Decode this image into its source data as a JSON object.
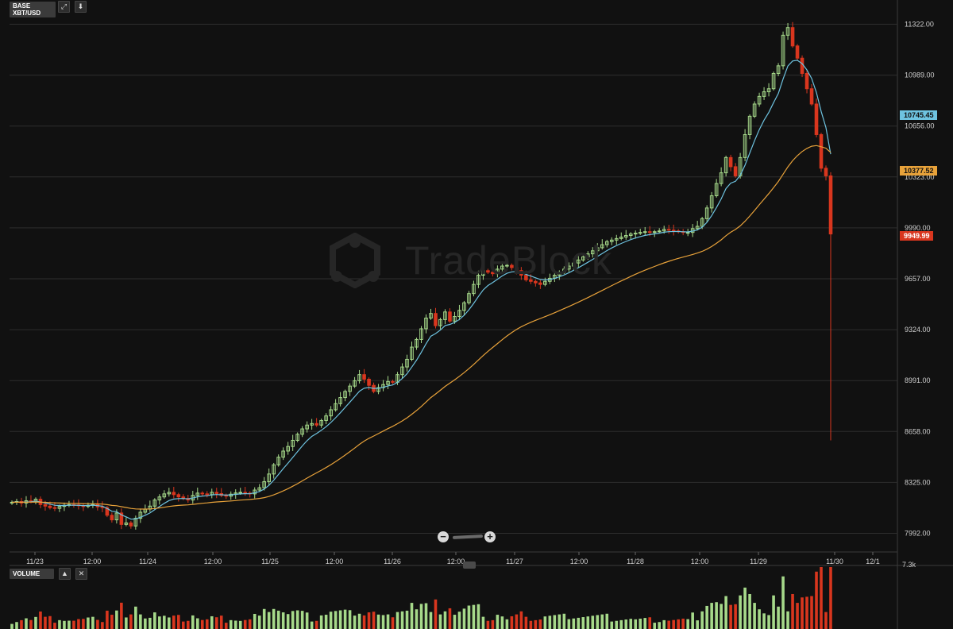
{
  "header": {
    "base_label": "BASE",
    "pair_label": "XBT/USD",
    "expand_icon": "expand-icon",
    "download_icon": "download-arrow-icon"
  },
  "watermark": {
    "text": "TradeBlock"
  },
  "zoom": {
    "minus": "−",
    "plus": "+"
  },
  "volume_panel": {
    "label": "VOLUME",
    "up_icon": "arrow-up-icon",
    "close_icon": "close-icon",
    "max_label": "7.3k"
  },
  "price_tags": {
    "fast_ma": "10745.45",
    "slow_ma": "10377.52",
    "last": "9949.99"
  },
  "colors": {
    "background": "#111111",
    "grid": "#2e2e2e",
    "up": "#a6d98a",
    "down": "#d9361e",
    "fast_ma": "#6ec3e0",
    "slow_ma": "#e8a23a"
  },
  "chart_data": {
    "type": "candlestick",
    "y_ticks": [
      "11322.00",
      "10989.00",
      "10656.00",
      "10323.00",
      "9990.00",
      "9657.00",
      "9324.00",
      "8991.00",
      "8658.00",
      "8325.00",
      "7992.00"
    ],
    "ylim": [
      7870,
      11470
    ],
    "x_ticks": [
      "11/23",
      "12:00",
      "11/24",
      "12:00",
      "11/25",
      "12:00",
      "11/26",
      "12:00",
      "11/27",
      "12:00",
      "11/28",
      "12:00",
      "11/29",
      "11/30",
      "12/1"
    ],
    "volume_ymax": 7300,
    "closes": [
      8195,
      8200,
      8190,
      8205,
      8200,
      8215,
      8180,
      8170,
      8160,
      8155,
      8168,
      8175,
      8180,
      8178,
      8172,
      8168,
      8175,
      8182,
      8165,
      8160,
      8110,
      8080,
      8125,
      8050,
      8060,
      8040,
      8090,
      8130,
      8150,
      8170,
      8210,
      8230,
      8250,
      8260,
      8245,
      8230,
      8220,
      8210,
      8240,
      8255,
      8250,
      8245,
      8260,
      8252,
      8240,
      8235,
      8248,
      8256,
      8260,
      8255,
      8250,
      8275,
      8290,
      8330,
      8380,
      8440,
      8490,
      8530,
      8560,
      8600,
      8640,
      8675,
      8700,
      8710,
      8700,
      8730,
      8760,
      8800,
      8840,
      8880,
      8920,
      8955,
      8990,
      9030,
      9000,
      8960,
      8920,
      8945,
      8965,
      8985,
      8980,
      9030,
      9080,
      9130,
      9210,
      9260,
      9330,
      9400,
      9430,
      9350,
      9390,
      9440,
      9380,
      9410,
      9450,
      9500,
      9560,
      9620,
      9680,
      9710,
      9700,
      9690,
      9720,
      9740,
      9745,
      9730,
      9710,
      9680,
      9650,
      9640,
      9630,
      9620,
      9640,
      9660,
      9680,
      9700,
      9720,
      9740,
      9760,
      9780,
      9800,
      9820,
      9840,
      9860,
      9880,
      9900,
      9910,
      9920,
      9930,
      9940,
      9950,
      9955,
      9960,
      9965,
      9960,
      9965,
      9970,
      9980,
      9975,
      9970,
      9965,
      9960,
      9960,
      9985,
      10000,
      10050,
      10120,
      10200,
      10280,
      10350,
      10450,
      10390,
      10330,
      10450,
      10600,
      10720,
      10800,
      10850,
      10880,
      10900,
      11000,
      11050,
      11250,
      11300,
      11180,
      11100,
      11000,
      10900,
      10800,
      10600,
      10380,
      10330,
      9949.99
    ],
    "series": [
      {
        "name": "10745.45",
        "values": []
      },
      {
        "name": "10377.52",
        "values": []
      }
    ]
  }
}
